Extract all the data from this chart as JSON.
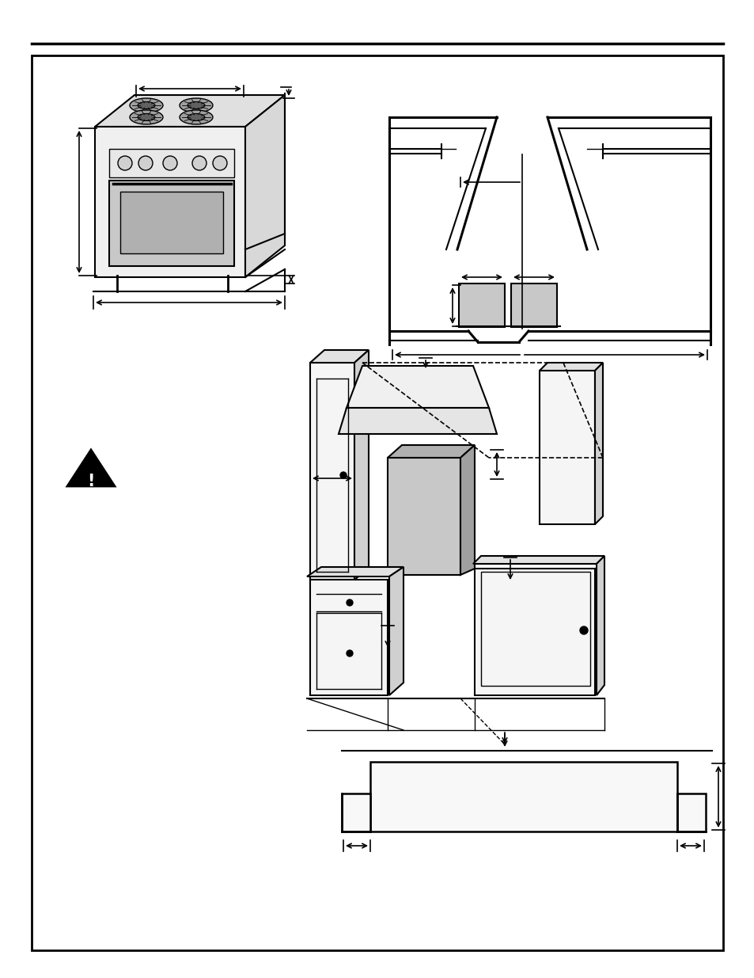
{
  "bg_color": "#ffffff",
  "border_color": "#000000",
  "line_color": "#000000",
  "gray_fill": "#c8c8c8",
  "light_gray": "#e0e0e0"
}
